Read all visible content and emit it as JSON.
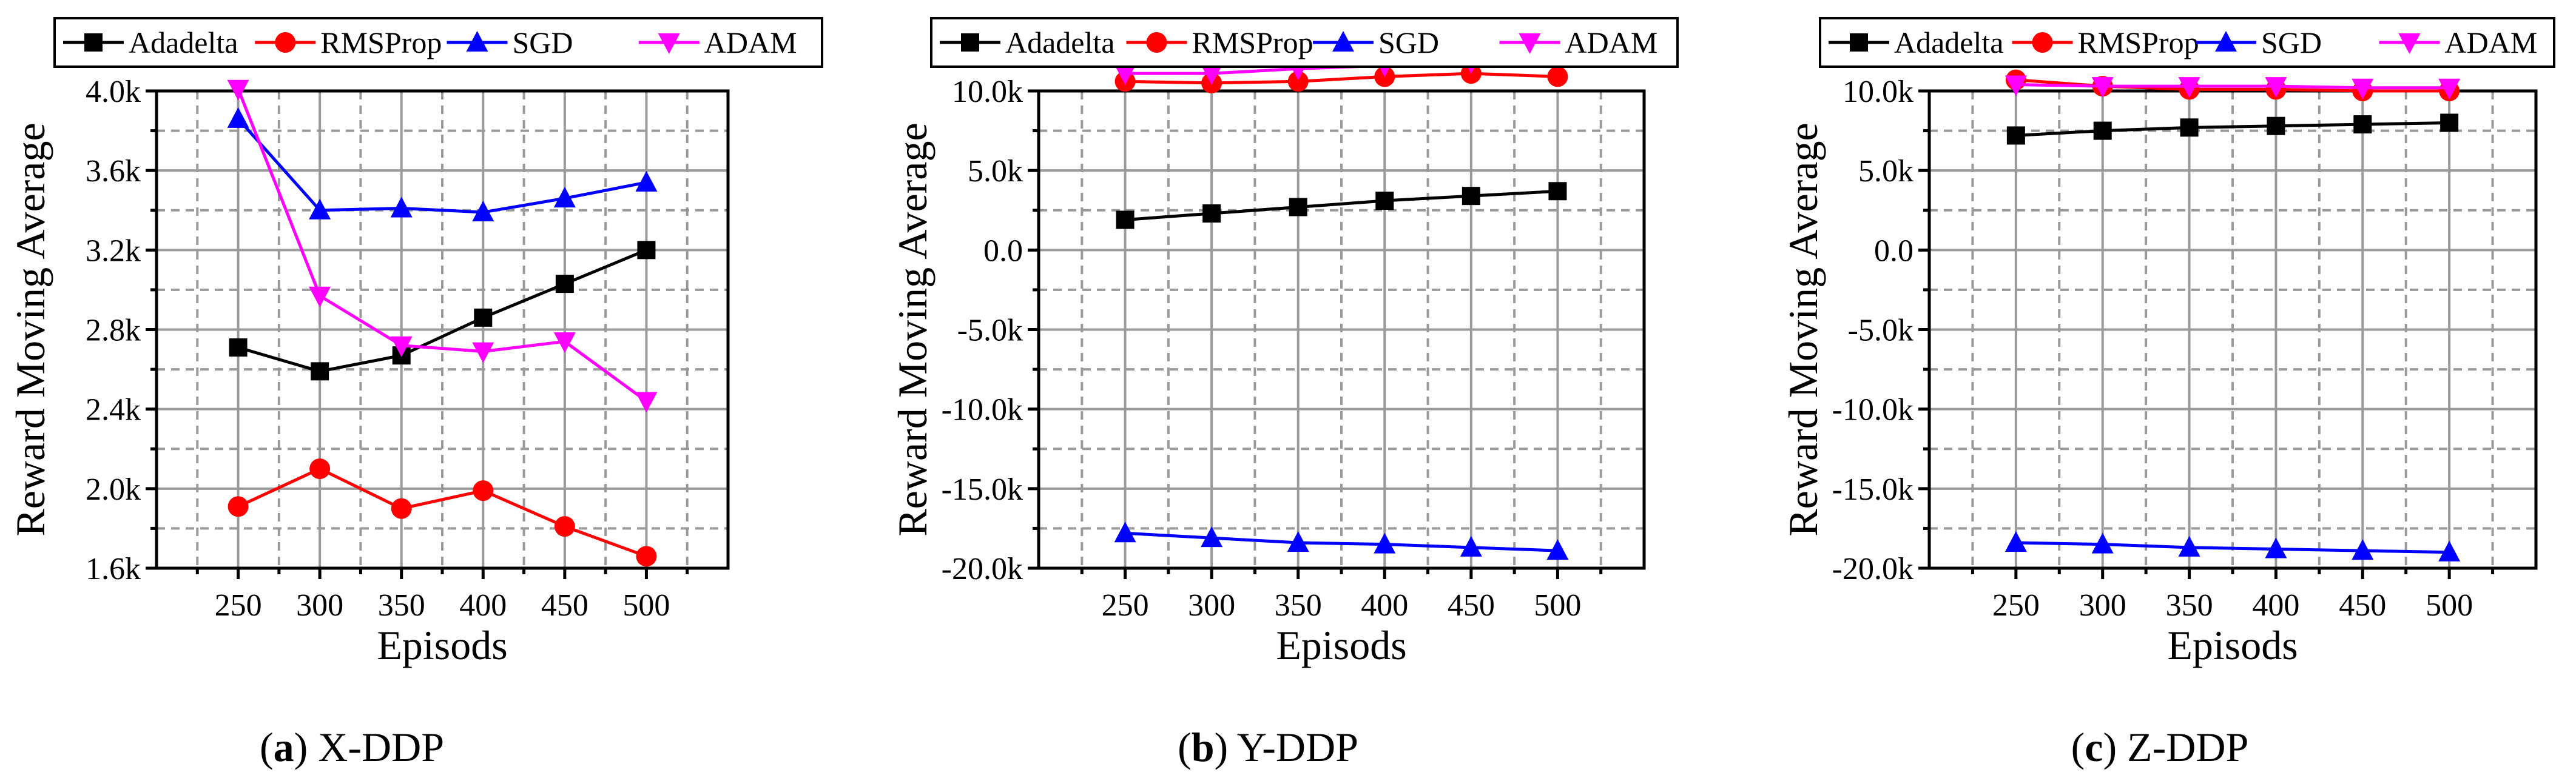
{
  "chart_data": [
    {
      "type": "line",
      "caption": {
        "letter": "(a)",
        "name": "X-DDP"
      },
      "xlabel": "Episods",
      "ylabel": "Reward Moving Average",
      "categories": [
        250,
        300,
        350,
        400,
        450,
        500
      ],
      "xticks": [
        "250",
        "300",
        "350",
        "400",
        "450",
        "500"
      ],
      "xlim": [
        200,
        550
      ],
      "ylim": [
        1600,
        4000
      ],
      "yticks": [
        {
          "v": 1600,
          "label": "1.6k"
        },
        {
          "v": 2000,
          "label": "2.0k"
        },
        {
          "v": 2400,
          "label": "2.4k"
        },
        {
          "v": 2800,
          "label": "2.8k"
        },
        {
          "v": 3200,
          "label": "3.2k"
        },
        {
          "v": 3600,
          "label": "3.6k"
        },
        {
          "v": 4000,
          "label": "4.0k"
        }
      ],
      "series": [
        {
          "name": "Adadelta",
          "values": [
            2710,
            2590,
            2670,
            2860,
            3030,
            3200
          ]
        },
        {
          "name": "RMSProp",
          "values": [
            1910,
            2100,
            1900,
            1990,
            1810,
            1660
          ]
        },
        {
          "name": "SGD",
          "values": [
            3860,
            3400,
            3410,
            3390,
            3460,
            3540
          ]
        },
        {
          "name": "ADAM",
          "values": [
            4010,
            2970,
            2720,
            2690,
            2740,
            2440
          ]
        }
      ]
    },
    {
      "type": "line",
      "caption": {
        "letter": "(b)",
        "name": "Y-DDP"
      },
      "xlabel": "Episods",
      "ylabel": "Reward Moving Average",
      "categories": [
        250,
        300,
        350,
        400,
        450,
        500
      ],
      "xticks": [
        "250",
        "300",
        "350",
        "400",
        "450",
        "500"
      ],
      "xlim": [
        200,
        550
      ],
      "ylim": [
        -20000,
        10000
      ],
      "yticks": [
        {
          "v": -20000,
          "label": "-20.0k"
        },
        {
          "v": -15000,
          "label": "-15.0k"
        },
        {
          "v": -10000,
          "label": "-10.0k"
        },
        {
          "v": -5000,
          "label": "-5.0k"
        },
        {
          "v": 0,
          "label": "0.0"
        },
        {
          "v": 5000,
          "label": "5.0k"
        },
        {
          "v": 10000,
          "label": "10.0k"
        }
      ],
      "series": [
        {
          "name": "Adadelta",
          "values": [
            1900,
            2300,
            2700,
            3100,
            3400,
            3700
          ]
        },
        {
          "name": "RMSProp",
          "values": [
            10600,
            10500,
            10600,
            10900,
            11100,
            10900
          ]
        },
        {
          "name": "SGD",
          "values": [
            -17800,
            -18100,
            -18400,
            -18500,
            -18700,
            -18900
          ]
        },
        {
          "name": "ADAM",
          "values": [
            11100,
            11100,
            11400,
            11600,
            11800,
            12100
          ]
        }
      ]
    },
    {
      "type": "line",
      "caption": {
        "letter": "(c)",
        "name": "Z-DDP"
      },
      "xlabel": "Episods",
      "ylabel": "Reward Moving Average",
      "categories": [
        250,
        300,
        350,
        400,
        450,
        500
      ],
      "xticks": [
        "250",
        "300",
        "350",
        "400",
        "450",
        "500"
      ],
      "xlim": [
        200,
        550
      ],
      "ylim": [
        -20000,
        10000
      ],
      "yticks": [
        {
          "v": -20000,
          "label": "-20.0k"
        },
        {
          "v": -15000,
          "label": "-15.0k"
        },
        {
          "v": -10000,
          "label": "-10.0k"
        },
        {
          "v": -5000,
          "label": "-5.0k"
        },
        {
          "v": 0,
          "label": "0.0"
        },
        {
          "v": 5000,
          "label": "5.0k"
        },
        {
          "v": 10000,
          "label": "10.0k"
        }
      ],
      "series": [
        {
          "name": "Adadelta",
          "values": [
            7200,
            7500,
            7700,
            7800,
            7900,
            8000
          ]
        },
        {
          "name": "RMSProp",
          "values": [
            10700,
            10300,
            10100,
            10100,
            10000,
            10000
          ]
        },
        {
          "name": "SGD",
          "values": [
            -18400,
            -18500,
            -18700,
            -18800,
            -18900,
            -19000
          ]
        },
        {
          "name": "ADAM",
          "values": [
            10400,
            10300,
            10300,
            10300,
            10200,
            10200
          ]
        }
      ]
    }
  ],
  "series_styles": [
    {
      "name": "Adadelta",
      "color": "#000000",
      "marker": "square"
    },
    {
      "name": "RMSProp",
      "color": "#ff0000",
      "marker": "circle"
    },
    {
      "name": "SGD",
      "color": "#0000ff",
      "marker": "triangle-up"
    },
    {
      "name": "ADAM",
      "color": "#ff00ff",
      "marker": "triangle-down"
    }
  ]
}
